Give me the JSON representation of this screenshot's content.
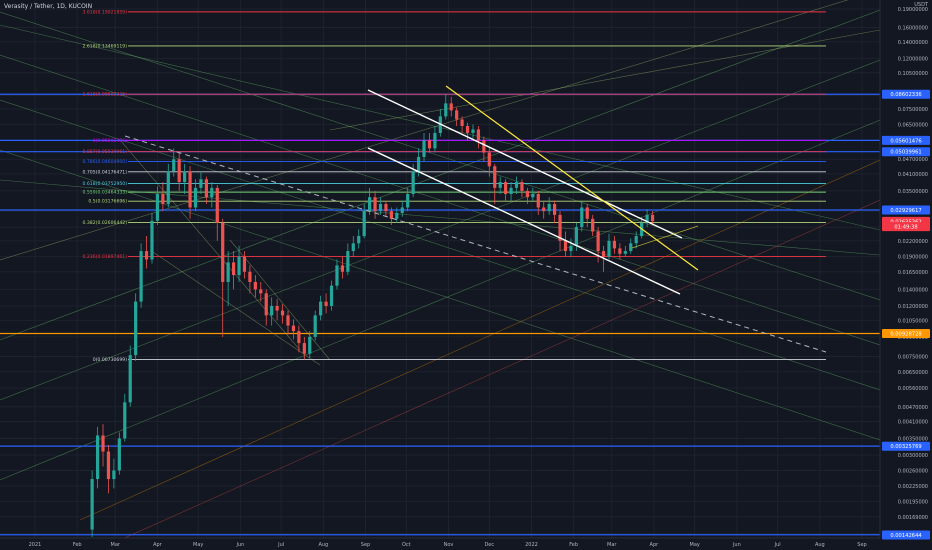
{
  "header": {
    "title": "Verasity / Tether, 1D, KUCOIN",
    "currency": "USDT"
  },
  "colors": {
    "bg": "#131722",
    "grid": "#1e222d",
    "up": "#26a69a",
    "down": "#ef5350",
    "fib_red": "#f23645",
    "fib_green": "#b2d87a",
    "fib_blue": "#2962ff",
    "fib_magenta": "#d500f9",
    "fib_white": "#d1d4dc",
    "fib_cyan": "#4dd0e1",
    "fib_lime": "#76d275",
    "orange": "#ff9800",
    "yellow": "#ffeb3b",
    "white": "#ffffff"
  },
  "chart_data": {
    "type": "candlestick",
    "symbol": "Verasity / Tether",
    "interval": "1D",
    "exchange": "KUCOIN",
    "y_axis": {
      "scale": "log",
      "ticks": [
        "0.19000000",
        "0.16000000",
        "0.14000000",
        "0.12000000",
        "0.10500000",
        "0.08500000",
        "0.07500000",
        "0.06500000",
        "0.04700000",
        "0.04100000",
        "0.03500000",
        "0.02900000",
        "0.02500000",
        "0.02200000",
        "0.01900000",
        "0.01650000",
        "0.01400000",
        "0.01200000",
        "0.01050000",
        "0.00900000",
        "0.00750000",
        "0.00650000",
        "0.00560000",
        "0.00470000",
        "0.00410000",
        "0.00350000",
        "0.00300000",
        "0.00260000",
        "0.00225000",
        "0.00195000",
        "0.00169000",
        "0.00145000"
      ]
    },
    "x_axis": {
      "ticks": [
        "2021",
        "Feb",
        "Mar",
        "Apr",
        "May",
        "Jun",
        "Jul",
        "Aug",
        "Sep",
        "Oct",
        "Nov",
        "Dec",
        "2022",
        "Feb",
        "Mar",
        "Apr",
        "May",
        "Jun",
        "Jul",
        "Aug",
        "Sep"
      ]
    },
    "price_labels": [
      {
        "text": "0.08602336",
        "color": "#2962ff",
        "price": 0.08602336
      },
      {
        "text": "0.05601476",
        "color": "#2962ff",
        "price": 0.05601476
      },
      {
        "text": "0.05039961",
        "color": "#2962ff",
        "price": 0.05039961
      },
      {
        "text": "0.02929617",
        "color": "#2962ff",
        "price": 0.02929617
      },
      {
        "text": "0.02635362",
        "color": "#f23645",
        "price": 0.02635362
      },
      {
        "text": "01:49:38",
        "color": "#f23645",
        "price": 0.0251
      },
      {
        "text": "0.00928728",
        "color": "#ff9800",
        "price": 0.00928728
      },
      {
        "text": "0.00325769",
        "color": "#2962ff",
        "price": 0.00325769
      },
      {
        "text": "0.00142644",
        "color": "#2962ff",
        "price": 0.00142644
      }
    ],
    "fib_levels": [
      {
        "label": "3.618(0.19021859)",
        "price": 0.185,
        "color": "#f23645"
      },
      {
        "label": "2.618(0.13469119)",
        "price": 0.1347,
        "color": "#b2d87a"
      },
      {
        "label": "1.618(0.08602336)",
        "price": 0.086,
        "color": "#f23645"
      },
      {
        "label": "1(0.05601476)",
        "price": 0.056,
        "color": "#d500f9"
      },
      {
        "label": "0.887(0.05039961)",
        "price": 0.0504,
        "color": "#f23645"
      },
      {
        "label": "0.786(0.04604900)",
        "price": 0.046,
        "color": "#2962ff"
      },
      {
        "label": "0.705(0.04176471)",
        "price": 0.0418,
        "color": "#d1d4dc"
      },
      {
        "label": "0.618(0.03752950)",
        "price": 0.0375,
        "color": "#4dd0e1"
      },
      {
        "label": "0.559(0.03464333)",
        "price": 0.0346,
        "color": "#76d275"
      },
      {
        "label": "0.5(0.03176696)",
        "price": 0.0318,
        "color": "#b2d87a"
      },
      {
        "label": "0.382(0.02606442)",
        "price": 0.0261,
        "color": "#b2d87a"
      },
      {
        "label": "0.236(0.01897461)",
        "price": 0.019,
        "color": "#f23645"
      },
      {
        "label": "0(0.00730699)",
        "price": 0.0073,
        "color": "#d1d4dc"
      }
    ],
    "h_lines": [
      {
        "price": 0.086,
        "color": "#2962ff"
      },
      {
        "price": 0.056,
        "color": "#2962ff"
      },
      {
        "price": 0.0504,
        "color": "#2962ff"
      },
      {
        "price": 0.0293,
        "color": "#2962ff"
      },
      {
        "price": 0.00929,
        "color": "#ff9800"
      },
      {
        "price": 0.00326,
        "color": "#2962ff"
      },
      {
        "price": 0.00143,
        "color": "#2962ff"
      }
    ],
    "candles": [
      {
        "date": "2021-02-12",
        "open": 0.0015,
        "close": 0.0024,
        "high": 0.0026,
        "low": 0.0014
      },
      {
        "date": "2021-02-16",
        "open": 0.0024,
        "close": 0.0036,
        "high": 0.0039,
        "low": 0.0022
      },
      {
        "date": "2021-02-20",
        "open": 0.0036,
        "close": 0.0031,
        "high": 0.004,
        "low": 0.0027
      },
      {
        "date": "2021-02-24",
        "open": 0.0031,
        "close": 0.0024,
        "high": 0.0033,
        "low": 0.0021
      },
      {
        "date": "2021-02-28",
        "open": 0.0024,
        "close": 0.0026,
        "high": 0.0029,
        "low": 0.0022
      },
      {
        "date": "2021-03-04",
        "open": 0.0026,
        "close": 0.0035,
        "high": 0.0037,
        "low": 0.0025
      },
      {
        "date": "2021-03-08",
        "open": 0.0035,
        "close": 0.0049,
        "high": 0.0053,
        "low": 0.0034
      },
      {
        "date": "2021-03-12",
        "open": 0.0049,
        "close": 0.0076,
        "high": 0.0083,
        "low": 0.0047
      },
      {
        "date": "2021-03-16",
        "open": 0.0076,
        "close": 0.0125,
        "high": 0.0135,
        "low": 0.0072
      },
      {
        "date": "2021-03-20",
        "open": 0.0125,
        "close": 0.02,
        "high": 0.0215,
        "low": 0.0118
      },
      {
        "date": "2021-03-24",
        "open": 0.02,
        "close": 0.0185,
        "high": 0.023,
        "low": 0.017
      },
      {
        "date": "2021-03-28",
        "open": 0.0185,
        "close": 0.0265,
        "high": 0.0285,
        "low": 0.0178
      },
      {
        "date": "2021-04-01",
        "open": 0.0265,
        "close": 0.034,
        "high": 0.0365,
        "low": 0.0255
      },
      {
        "date": "2021-04-05",
        "open": 0.034,
        "close": 0.031,
        "high": 0.038,
        "low": 0.029
      },
      {
        "date": "2021-04-09",
        "open": 0.031,
        "close": 0.042,
        "high": 0.045,
        "low": 0.03
      },
      {
        "date": "2021-04-13",
        "open": 0.042,
        "close": 0.047,
        "high": 0.052,
        "low": 0.04
      },
      {
        "date": "2021-04-17",
        "open": 0.047,
        "close": 0.038,
        "high": 0.05,
        "low": 0.035
      },
      {
        "date": "2021-04-21",
        "open": 0.038,
        "close": 0.042,
        "high": 0.045,
        "low": 0.034
      },
      {
        "date": "2021-04-25",
        "open": 0.042,
        "close": 0.03,
        "high": 0.044,
        "low": 0.027
      },
      {
        "date": "2021-04-29",
        "open": 0.03,
        "close": 0.036,
        "high": 0.039,
        "low": 0.029
      },
      {
        "date": "2021-05-03",
        "open": 0.036,
        "close": 0.039,
        "high": 0.042,
        "low": 0.034
      },
      {
        "date": "2021-05-07",
        "open": 0.039,
        "close": 0.033,
        "high": 0.04,
        "low": 0.031
      },
      {
        "date": "2021-05-11",
        "open": 0.033,
        "close": 0.036,
        "high": 0.038,
        "low": 0.03
      },
      {
        "date": "2021-05-15",
        "open": 0.036,
        "close": 0.026,
        "high": 0.037,
        "low": 0.022
      },
      {
        "date": "2021-05-19",
        "open": 0.026,
        "close": 0.015,
        "high": 0.027,
        "low": 0.009
      },
      {
        "date": "2021-05-23",
        "open": 0.015,
        "close": 0.018,
        "high": 0.02,
        "low": 0.012
      },
      {
        "date": "2021-05-27",
        "open": 0.018,
        "close": 0.016,
        "high": 0.02,
        "low": 0.014
      },
      {
        "date": "2021-05-31",
        "open": 0.016,
        "close": 0.019,
        "high": 0.021,
        "low": 0.015
      },
      {
        "date": "2021-06-04",
        "open": 0.019,
        "close": 0.0165,
        "high": 0.02,
        "low": 0.0155
      },
      {
        "date": "2021-06-08",
        "open": 0.0165,
        "close": 0.015,
        "high": 0.0175,
        "low": 0.0135
      },
      {
        "date": "2021-06-12",
        "open": 0.015,
        "close": 0.014,
        "high": 0.016,
        "low": 0.013
      },
      {
        "date": "2021-06-16",
        "open": 0.014,
        "close": 0.0135,
        "high": 0.015,
        "low": 0.0125
      },
      {
        "date": "2021-06-20",
        "open": 0.0135,
        "close": 0.011,
        "high": 0.014,
        "low": 0.01
      },
      {
        "date": "2021-06-24",
        "open": 0.011,
        "close": 0.012,
        "high": 0.013,
        "low": 0.01
      },
      {
        "date": "2021-06-28",
        "open": 0.012,
        "close": 0.0115,
        "high": 0.0128,
        "low": 0.0105
      },
      {
        "date": "2021-07-02",
        "open": 0.0115,
        "close": 0.011,
        "high": 0.0122,
        "low": 0.0102
      },
      {
        "date": "2021-07-06",
        "open": 0.011,
        "close": 0.01,
        "high": 0.0115,
        "low": 0.0092
      },
      {
        "date": "2021-07-10",
        "open": 0.01,
        "close": 0.0095,
        "high": 0.0106,
        "low": 0.0088
      },
      {
        "date": "2021-07-14",
        "open": 0.0095,
        "close": 0.0085,
        "high": 0.01,
        "low": 0.0078
      },
      {
        "date": "2021-07-18",
        "open": 0.0085,
        "close": 0.0077,
        "high": 0.009,
        "low": 0.0073
      },
      {
        "date": "2021-07-22",
        "open": 0.0077,
        "close": 0.009,
        "high": 0.0095,
        "low": 0.0074
      },
      {
        "date": "2021-07-26",
        "open": 0.009,
        "close": 0.011,
        "high": 0.0115,
        "low": 0.0087
      },
      {
        "date": "2021-07-30",
        "open": 0.011,
        "close": 0.0125,
        "high": 0.0132,
        "low": 0.0105
      },
      {
        "date": "2021-08-03",
        "open": 0.0125,
        "close": 0.012,
        "high": 0.0135,
        "low": 0.0112
      },
      {
        "date": "2021-08-07",
        "open": 0.012,
        "close": 0.0145,
        "high": 0.0152,
        "low": 0.0115
      },
      {
        "date": "2021-08-11",
        "open": 0.0145,
        "close": 0.0175,
        "high": 0.0185,
        "low": 0.014
      },
      {
        "date": "2021-08-15",
        "open": 0.0175,
        "close": 0.0165,
        "high": 0.019,
        "low": 0.0155
      },
      {
        "date": "2021-08-19",
        "open": 0.0165,
        "close": 0.02,
        "high": 0.0215,
        "low": 0.016
      },
      {
        "date": "2021-08-23",
        "open": 0.02,
        "close": 0.0215,
        "high": 0.023,
        "low": 0.019
      },
      {
        "date": "2021-08-27",
        "open": 0.0215,
        "close": 0.023,
        "high": 0.0245,
        "low": 0.0205
      },
      {
        "date": "2021-08-31",
        "open": 0.023,
        "close": 0.029,
        "high": 0.031,
        "low": 0.0225
      },
      {
        "date": "2021-09-04",
        "open": 0.029,
        "close": 0.033,
        "high": 0.036,
        "low": 0.028
      },
      {
        "date": "2021-09-08",
        "open": 0.033,
        "close": 0.029,
        "high": 0.035,
        "low": 0.027
      },
      {
        "date": "2021-09-12",
        "open": 0.029,
        "close": 0.031,
        "high": 0.033,
        "low": 0.028
      },
      {
        "date": "2021-09-16",
        "open": 0.031,
        "close": 0.029,
        "high": 0.032,
        "low": 0.0275
      },
      {
        "date": "2021-09-20",
        "open": 0.029,
        "close": 0.027,
        "high": 0.03,
        "low": 0.0255
      },
      {
        "date": "2021-09-24",
        "open": 0.027,
        "close": 0.0285,
        "high": 0.03,
        "low": 0.026
      },
      {
        "date": "2021-09-28",
        "open": 0.0285,
        "close": 0.03,
        "high": 0.032,
        "low": 0.0275
      },
      {
        "date": "2021-10-02",
        "open": 0.03,
        "close": 0.034,
        "high": 0.036,
        "low": 0.029
      },
      {
        "date": "2021-10-06",
        "open": 0.034,
        "close": 0.042,
        "high": 0.045,
        "low": 0.033
      },
      {
        "date": "2021-10-10",
        "open": 0.042,
        "close": 0.048,
        "high": 0.052,
        "low": 0.04
      },
      {
        "date": "2021-10-14",
        "open": 0.048,
        "close": 0.056,
        "high": 0.06,
        "low": 0.046
      },
      {
        "date": "2021-10-18",
        "open": 0.056,
        "close": 0.052,
        "high": 0.06,
        "low": 0.05
      },
      {
        "date": "2021-10-22",
        "open": 0.052,
        "close": 0.06,
        "high": 0.064,
        "low": 0.05
      },
      {
        "date": "2021-10-26",
        "open": 0.06,
        "close": 0.07,
        "high": 0.075,
        "low": 0.058
      },
      {
        "date": "2021-10-30",
        "open": 0.07,
        "close": 0.079,
        "high": 0.086,
        "low": 0.068
      },
      {
        "date": "2021-11-03",
        "open": 0.079,
        "close": 0.074,
        "high": 0.084,
        "low": 0.07
      },
      {
        "date": "2021-11-07",
        "open": 0.074,
        "close": 0.068,
        "high": 0.076,
        "low": 0.064
      },
      {
        "date": "2021-11-11",
        "open": 0.068,
        "close": 0.064,
        "high": 0.07,
        "low": 0.06
      },
      {
        "date": "2021-11-15",
        "open": 0.064,
        "close": 0.06,
        "high": 0.066,
        "low": 0.056
      },
      {
        "date": "2021-11-19",
        "open": 0.06,
        "close": 0.062,
        "high": 0.065,
        "low": 0.057
      },
      {
        "date": "2021-11-23",
        "open": 0.062,
        "close": 0.056,
        "high": 0.064,
        "low": 0.052
      },
      {
        "date": "2021-11-27",
        "open": 0.056,
        "close": 0.05,
        "high": 0.058,
        "low": 0.046
      },
      {
        "date": "2021-12-01",
        "open": 0.05,
        "close": 0.044,
        "high": 0.052,
        "low": 0.04
      },
      {
        "date": "2021-12-05",
        "open": 0.044,
        "close": 0.036,
        "high": 0.045,
        "low": 0.031
      },
      {
        "date": "2021-12-09",
        "open": 0.036,
        "close": 0.038,
        "high": 0.04,
        "low": 0.034
      },
      {
        "date": "2021-12-13",
        "open": 0.038,
        "close": 0.034,
        "high": 0.039,
        "low": 0.032
      },
      {
        "date": "2021-12-17",
        "open": 0.034,
        "close": 0.036,
        "high": 0.038,
        "low": 0.032
      },
      {
        "date": "2021-12-21",
        "open": 0.036,
        "close": 0.038,
        "high": 0.04,
        "low": 0.034
      },
      {
        "date": "2021-12-25",
        "open": 0.038,
        "close": 0.035,
        "high": 0.039,
        "low": 0.033
      },
      {
        "date": "2021-12-29",
        "open": 0.035,
        "close": 0.033,
        "high": 0.036,
        "low": 0.031
      },
      {
        "date": "2022-01-02",
        "open": 0.033,
        "close": 0.034,
        "high": 0.036,
        "low": 0.032
      },
      {
        "date": "2022-01-06",
        "open": 0.034,
        "close": 0.03,
        "high": 0.035,
        "low": 0.028
      },
      {
        "date": "2022-01-10",
        "open": 0.03,
        "close": 0.029,
        "high": 0.032,
        "low": 0.027
      },
      {
        "date": "2022-01-14",
        "open": 0.029,
        "close": 0.031,
        "high": 0.033,
        "low": 0.028
      },
      {
        "date": "2022-01-18",
        "open": 0.031,
        "close": 0.028,
        "high": 0.032,
        "low": 0.026
      },
      {
        "date": "2022-01-22",
        "open": 0.028,
        "close": 0.022,
        "high": 0.029,
        "low": 0.02
      },
      {
        "date": "2022-01-26",
        "open": 0.022,
        "close": 0.02,
        "high": 0.024,
        "low": 0.019
      },
      {
        "date": "2022-01-30",
        "open": 0.02,
        "close": 0.021,
        "high": 0.0225,
        "low": 0.019
      },
      {
        "date": "2022-02-03",
        "open": 0.021,
        "close": 0.025,
        "high": 0.026,
        "low": 0.02
      },
      {
        "date": "2022-02-07",
        "open": 0.025,
        "close": 0.03,
        "high": 0.032,
        "low": 0.024
      },
      {
        "date": "2022-02-11",
        "open": 0.03,
        "close": 0.027,
        "high": 0.031,
        "low": 0.025
      },
      {
        "date": "2022-02-15",
        "open": 0.027,
        "close": 0.024,
        "high": 0.028,
        "low": 0.023
      },
      {
        "date": "2022-02-19",
        "open": 0.024,
        "close": 0.02,
        "high": 0.025,
        "low": 0.018
      },
      {
        "date": "2022-02-23",
        "open": 0.02,
        "close": 0.019,
        "high": 0.021,
        "low": 0.0165
      },
      {
        "date": "2022-02-27",
        "open": 0.019,
        "close": 0.022,
        "high": 0.0235,
        "low": 0.0185
      },
      {
        "date": "2022-03-03",
        "open": 0.022,
        "close": 0.0205,
        "high": 0.023,
        "low": 0.0195
      },
      {
        "date": "2022-03-07",
        "open": 0.0205,
        "close": 0.0195,
        "high": 0.0215,
        "low": 0.0185
      },
      {
        "date": "2022-03-11",
        "open": 0.0195,
        "close": 0.02,
        "high": 0.021,
        "low": 0.019
      },
      {
        "date": "2022-03-15",
        "open": 0.02,
        "close": 0.0215,
        "high": 0.0225,
        "low": 0.0195
      },
      {
        "date": "2022-03-19",
        "open": 0.0215,
        "close": 0.023,
        "high": 0.024,
        "low": 0.0205
      },
      {
        "date": "2022-03-23",
        "open": 0.023,
        "close": 0.026,
        "high": 0.0275,
        "low": 0.0225
      },
      {
        "date": "2022-03-27",
        "open": 0.026,
        "close": 0.028,
        "high": 0.0295,
        "low": 0.025
      },
      {
        "date": "2022-03-31",
        "open": 0.028,
        "close": 0.0264,
        "high": 0.029,
        "low": 0.0255
      }
    ]
  }
}
